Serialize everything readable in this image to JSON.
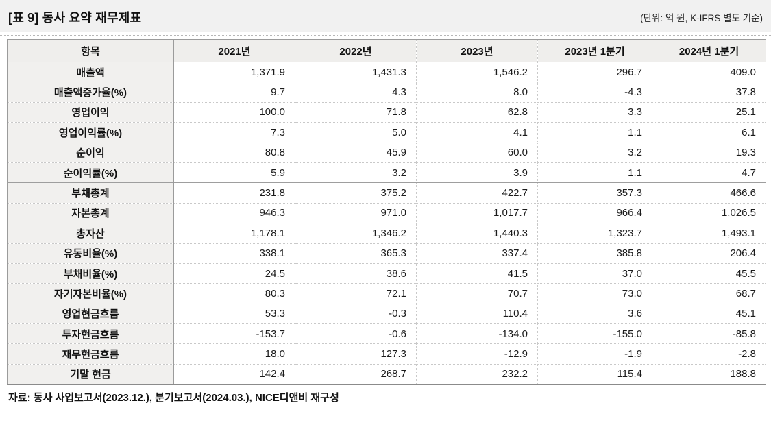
{
  "header": {
    "title": "[표 9] 동사 요약 재무제표",
    "unit_note": "(단위: 억 원, K-IFRS 별도 기준)"
  },
  "table": {
    "columns": [
      "항목",
      "2021년",
      "2022년",
      "2023년",
      "2023년 1분기",
      "2024년 1분기"
    ],
    "rows": [
      {
        "label": "매출액",
        "values": [
          "1,371.9",
          "1,431.3",
          "1,546.2",
          "296.7",
          "409.0"
        ]
      },
      {
        "label": "매출액증가율(%)",
        "values": [
          "9.7",
          "4.3",
          "8.0",
          "-4.3",
          "37.8"
        ]
      },
      {
        "label": "영업이익",
        "values": [
          "100.0",
          "71.8",
          "62.8",
          "3.3",
          "25.1"
        ]
      },
      {
        "label": "영업이익률(%)",
        "values": [
          "7.3",
          "5.0",
          "4.1",
          "1.1",
          "6.1"
        ]
      },
      {
        "label": "순이익",
        "values": [
          "80.8",
          "45.9",
          "60.0",
          "3.2",
          "19.3"
        ]
      },
      {
        "label": "순이익률(%)",
        "values": [
          "5.9",
          "3.2",
          "3.9",
          "1.1",
          "4.7"
        ],
        "section_end": true
      },
      {
        "label": "부채총계",
        "values": [
          "231.8",
          "375.2",
          "422.7",
          "357.3",
          "466.6"
        ]
      },
      {
        "label": "자본총계",
        "values": [
          "946.3",
          "971.0",
          "1,017.7",
          "966.4",
          "1,026.5"
        ]
      },
      {
        "label": "총자산",
        "values": [
          "1,178.1",
          "1,346.2",
          "1,440.3",
          "1,323.7",
          "1,493.1"
        ]
      },
      {
        "label": "유동비율(%)",
        "values": [
          "338.1",
          "365.3",
          "337.4",
          "385.8",
          "206.4"
        ]
      },
      {
        "label": "부채비율(%)",
        "values": [
          "24.5",
          "38.6",
          "41.5",
          "37.0",
          "45.5"
        ]
      },
      {
        "label": "자기자본비율(%)",
        "values": [
          "80.3",
          "72.1",
          "70.7",
          "73.0",
          "68.7"
        ],
        "section_end": true
      },
      {
        "label": "영업현금흐름",
        "values": [
          "53.3",
          "-0.3",
          "110.4",
          "3.6",
          "45.1"
        ]
      },
      {
        "label": "투자현금흐름",
        "values": [
          "-153.7",
          "-0.6",
          "-134.0",
          "-155.0",
          "-85.8"
        ]
      },
      {
        "label": "재무현금흐름",
        "values": [
          "18.0",
          "127.3",
          "-12.9",
          "-1.9",
          "-2.8"
        ]
      },
      {
        "label": "기말 현금",
        "values": [
          "142.4",
          "268.7",
          "232.2",
          "115.4",
          "188.8"
        ]
      }
    ]
  },
  "footer": {
    "source": "자료: 동사 사업보고서(2023.12.), 분기보고서(2024.03.), NICE디앤비 재구성"
  },
  "colors": {
    "title_band_bg": "#f1f1f1",
    "header_bg": "#efeeec",
    "item_col_bg": "#f1f0ee",
    "border_solid": "#9b9b9b",
    "border_dotted": "#c9c9c9"
  }
}
